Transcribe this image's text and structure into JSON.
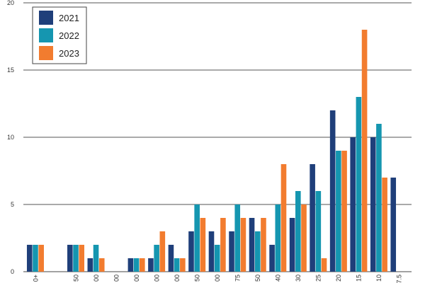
{
  "chart_data": {
    "type": "bar",
    "categories": [
      "0+",
      "",
      "50",
      "00",
      "00",
      "00",
      "00",
      "00",
      "50",
      "00",
      "75",
      "50",
      "40",
      "30",
      "25",
      "20",
      "15",
      "10",
      "7.5"
    ],
    "series": [
      {
        "name": "2021",
        "color": "#1f3f7a",
        "values": [
          2,
          0,
          2,
          1,
          0,
          1,
          1,
          2,
          3,
          3,
          3,
          4,
          2,
          4,
          8,
          12,
          10,
          10,
          7
        ]
      },
      {
        "name": "2022",
        "color": "#1596b0",
        "values": [
          2,
          0,
          2,
          2,
          0,
          1,
          2,
          1,
          5,
          2,
          5,
          3,
          5,
          6,
          6,
          9,
          13,
          11,
          0
        ]
      },
      {
        "name": "2023",
        "color": "#f27c2f",
        "values": [
          2,
          0,
          2,
          1,
          0,
          1,
          3,
          1,
          4,
          4,
          4,
          4,
          8,
          5,
          1,
          9,
          18,
          7,
          0
        ]
      }
    ],
    "ylim": [
      0,
      20
    ],
    "yticks": [
      0,
      5,
      10,
      15,
      20
    ],
    "title": "",
    "xlabel": "",
    "ylabel": "",
    "grid": "horizontal",
    "legend_position": "top-left"
  }
}
